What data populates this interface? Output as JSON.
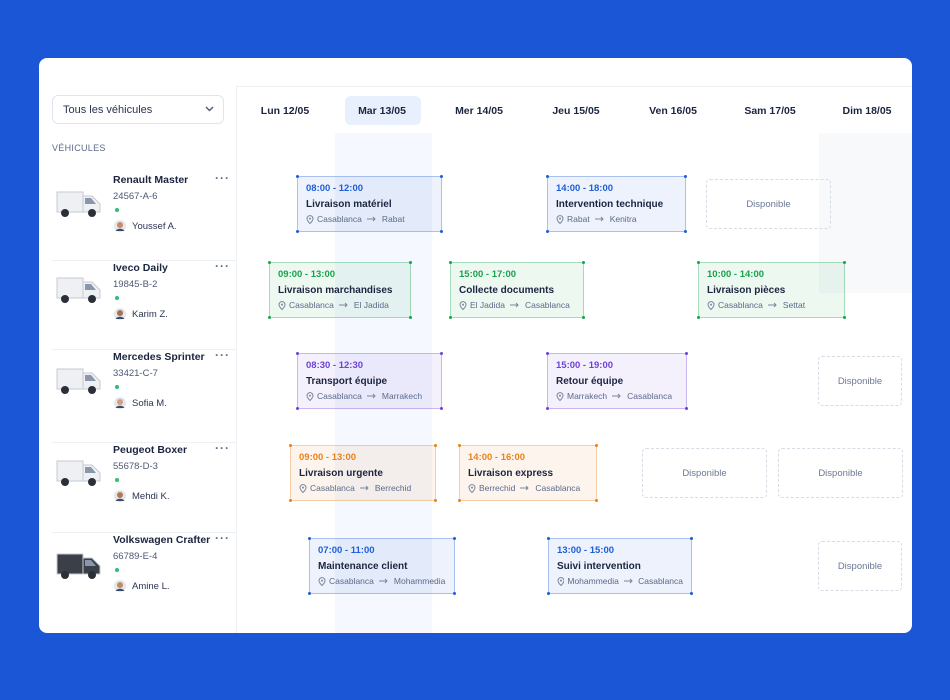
{
  "filter": {
    "label": "Tous les véhicules"
  },
  "sidebar": {
    "section_label": "VÉHICULES"
  },
  "days": [
    "Lun 12/05",
    "Mar 13/05",
    "Mer 14/05",
    "Jeu 15/05",
    "Ven 16/05",
    "Sam 17/05",
    "Dim 18/05"
  ],
  "vehicles": [
    {
      "name": "Renault Master",
      "plate": "24567-A-6",
      "driver": "Youssef A.",
      "schedule": [
        {
          "time": "08:00 - 12:00",
          "title": "Livraison matériel",
          "from": "Casablanca",
          "to": "Rabat",
          "color": "#1d5ed8"
        },
        {
          "time": "14:00 - 18:00",
          "title": "Intervention technique",
          "from": "Rabat",
          "to": "Kenitra",
          "color": "#1d5ed8"
        },
        {
          "label": "Disponible"
        }
      ]
    },
    {
      "name": "Iveco Daily",
      "plate": "19845-B-2",
      "driver": "Karim Z.",
      "schedule": [
        {
          "time": "09:00 - 13:00",
          "title": "Livraison marchandises",
          "from": "Casablanca",
          "to": "El Jadida",
          "color": "#16a34a"
        },
        {
          "time": "15:00 - 17:00",
          "title": "Collecte documents",
          "from": "El Jadida",
          "to": "Casablanca",
          "color": "#16a34a"
        },
        {
          "time": "10:00 - 14:00",
          "title": "Livraison pièces",
          "from": "Casablanca",
          "to": "Settat",
          "color": "#16a34a"
        }
      ]
    },
    {
      "name": "Mercedes Sprinter",
      "plate": "33421-C-7",
      "driver": "Sofia M.",
      "schedule": [
        {
          "time": "08:30 - 12:30",
          "title": "Transport équipe",
          "from": "Casablanca",
          "to": "Marrakech",
          "color": "#6d42d6"
        },
        {
          "time": "15:00 - 19:00",
          "title": "Retour équipe",
          "from": "Marrakech",
          "to": "Casablanca",
          "color": "#6d42d6"
        },
        {
          "label": "Disponible"
        }
      ]
    },
    {
      "name": "Peugeot Boxer",
      "plate": "55678-D-3",
      "driver": "Mehdi K.",
      "schedule": [
        {
          "time": "09:00 - 13:00",
          "title": "Livraison urgente",
          "from": "Casablanca",
          "to": "Berrechid",
          "color": "#e8821a"
        },
        {
          "time": "14:00 - 16:00",
          "title": "Livraison express",
          "from": "Berrechid",
          "to": "Casablanca",
          "color": "#e8821a"
        },
        {
          "label": "Disponible"
        },
        {
          "label": "Disponible"
        }
      ]
    },
    {
      "name": "Volkswagen Crafter",
      "plate": "66789-E-4",
      "driver": "Amine L.",
      "schedule": [
        {
          "time": "07:00 - 11:00",
          "title": "Maintenance client",
          "from": "Casablanca",
          "to": "Mohammedia",
          "color": "#1d5ed8"
        },
        {
          "time": "13:00 - 15:00",
          "title": "Suivi intervention",
          "from": "Mohammedia",
          "to": "Casablanca",
          "color": "#1d5ed8"
        },
        {
          "label": "Disponible"
        }
      ]
    }
  ]
}
